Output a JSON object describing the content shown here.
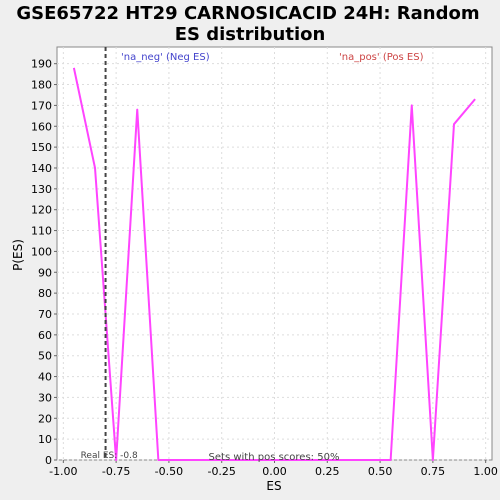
{
  "chart_data": {
    "type": "line",
    "title_lines": [
      "GSE65722 HT29 CARNOSICACID 24H: Random",
      "ES distribution"
    ],
    "xlabel": "ES",
    "ylabel": "P(ES)",
    "xlim": [
      -1.03,
      1.03
    ],
    "ylim": [
      0,
      198
    ],
    "x_ticks": [
      -1.0,
      -0.75,
      -0.5,
      -0.25,
      0.0,
      0.25,
      0.5,
      0.75,
      1.0
    ],
    "x_tick_labels": [
      "-1.00",
      "-0.75",
      "-0.50",
      "-0.25",
      "0.00",
      "0.25",
      "0.50",
      "0.75",
      "1.00"
    ],
    "y_ticks": [
      0,
      10,
      20,
      30,
      40,
      50,
      60,
      70,
      80,
      90,
      100,
      110,
      120,
      130,
      140,
      150,
      160,
      170,
      180,
      190
    ],
    "grid": true,
    "series": [
      {
        "color": "#ff44ff",
        "x": [
          -0.95,
          -0.85,
          -0.75,
          -0.65,
          -0.55,
          -0.45,
          -0.35,
          -0.25,
          -0.15,
          -0.05,
          0.05,
          0.15,
          0.25,
          0.35,
          0.45,
          0.55,
          0.65,
          0.75,
          0.85,
          0.95
        ],
        "y": [
          188,
          140,
          0,
          168,
          0,
          0,
          0,
          0,
          0,
          0,
          0,
          0,
          0,
          0,
          0,
          0,
          170,
          0,
          161,
          173
        ]
      }
    ],
    "real_es": {
      "x": -0.8,
      "label": "Real ES: -0.8",
      "color": "#444444"
    },
    "neg_label": {
      "text": "'na_neg' (Neg ES)",
      "color": "#4444cc"
    },
    "pos_label": {
      "text": "'na_pos' (Pos ES)",
      "color": "#cc4444"
    },
    "footer_text": "Sets with pos scores: 50%"
  }
}
